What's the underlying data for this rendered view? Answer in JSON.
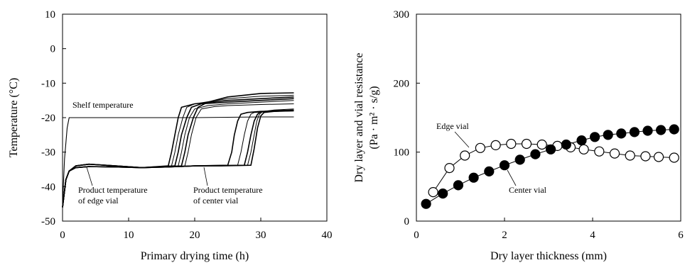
{
  "chart_data": [
    {
      "type": "line",
      "xlabel": "Primary drying time (h)",
      "ylabel": "Temperature (°C)",
      "xlim": [
        0,
        40
      ],
      "ylim": [
        -50,
        10
      ],
      "xticks": [
        0,
        10,
        20,
        30,
        40
      ],
      "yticks": [
        -50,
        -40,
        -30,
        -20,
        -10,
        0,
        10
      ],
      "grid": false,
      "annotations": [
        {
          "text": "Shelf temperature"
        },
        {
          "text": "Product temperature",
          "text2": "of edge vial"
        },
        {
          "text": "Product temperature",
          "text2": "of center vial"
        }
      ],
      "series": [
        {
          "group": "shelf",
          "x": [
            0,
            0.3,
            0.7,
            1,
            2,
            10,
            20,
            30,
            35
          ],
          "y": [
            -45,
            -32,
            -23,
            -20,
            -20,
            -20,
            -20,
            -19.8,
            -19.8
          ]
        },
        {
          "group": "edge",
          "x": [
            0,
            0.5,
            1,
            2,
            4,
            8,
            12,
            16,
            16.5,
            17,
            17.5,
            18,
            20,
            25,
            30,
            35
          ],
          "y": [
            -46,
            -38,
            -35.5,
            -34,
            -33.5,
            -34,
            -34.5,
            -34,
            -30,
            -25,
            -20,
            -17,
            -16,
            -15,
            -14.5,
            -14
          ]
        },
        {
          "group": "edge",
          "x": [
            0,
            0.5,
            1,
            2,
            4,
            8,
            12,
            16.5,
            17,
            17.5,
            18.2,
            18.8,
            20,
            25,
            30,
            35
          ],
          "y": [
            -46,
            -38,
            -35.5,
            -34,
            -33.5,
            -34,
            -34.5,
            -34,
            -30,
            -25,
            -20,
            -17,
            -16,
            -14.5,
            -13.8,
            -13.5
          ]
        },
        {
          "group": "edge",
          "x": [
            0,
            0.5,
            1,
            2,
            4,
            8,
            12,
            17,
            17.5,
            18,
            18.8,
            19.5,
            21,
            25,
            30,
            35
          ],
          "y": [
            -46,
            -38,
            -35.5,
            -34,
            -33.5,
            -34,
            -34.5,
            -34,
            -30,
            -25,
            -20,
            -17,
            -16,
            -15.5,
            -15,
            -14.5
          ]
        },
        {
          "group": "edge",
          "x": [
            0,
            0.5,
            1,
            2,
            4,
            8,
            12,
            17.5,
            18,
            18.5,
            19.2,
            20,
            22,
            25,
            30,
            35
          ],
          "y": [
            -46,
            -38,
            -35.5,
            -34,
            -33.5,
            -34,
            -34.5,
            -34,
            -30,
            -25,
            -20,
            -17.5,
            -16.5,
            -16,
            -15.5,
            -15
          ]
        },
        {
          "group": "edge",
          "x": [
            0,
            0.5,
            1,
            2,
            4,
            8,
            12,
            18,
            18.5,
            19,
            19.8,
            20.5,
            22,
            25,
            30,
            35
          ],
          "y": [
            -46,
            -38,
            -35.5,
            -34,
            -33.5,
            -34,
            -34.5,
            -34,
            -30,
            -25,
            -20,
            -17,
            -15.5,
            -14,
            -13,
            -12.8
          ]
        },
        {
          "group": "edge",
          "x": [
            0,
            0.5,
            1,
            2,
            4,
            8,
            12,
            18.5,
            19,
            19.5,
            20.2,
            21,
            23,
            25,
            30,
            35
          ],
          "y": [
            -46,
            -38,
            -35.5,
            -34,
            -33.5,
            -34,
            -34.5,
            -34,
            -30,
            -25,
            -20,
            -17.5,
            -16.8,
            -16.5,
            -16.2,
            -16
          ]
        },
        {
          "group": "center",
          "x": [
            0,
            0.5,
            1,
            2,
            4,
            8,
            12,
            16,
            20,
            25,
            25.6,
            26,
            26.5,
            27,
            28,
            30,
            35
          ],
          "y": [
            -46,
            -38,
            -35.5,
            -34.5,
            -34.2,
            -34.3,
            -34.5,
            -34.3,
            -34,
            -33.8,
            -30,
            -25,
            -21,
            -19,
            -18.5,
            -18.2,
            -18
          ]
        },
        {
          "group": "center",
          "x": [
            0,
            0.5,
            1,
            2,
            4,
            8,
            12,
            16,
            20,
            26.5,
            27,
            27.5,
            28,
            28.5,
            29,
            31,
            35
          ],
          "y": [
            -46,
            -38,
            -35.5,
            -34.5,
            -34.2,
            -34.3,
            -34.5,
            -34.3,
            -34,
            -33.8,
            -30,
            -25,
            -21,
            -19,
            -18.5,
            -18.3,
            -18
          ]
        },
        {
          "group": "center",
          "x": [
            0,
            0.5,
            1,
            2,
            4,
            8,
            12,
            16,
            20,
            27.5,
            28,
            28.5,
            29,
            29.5,
            30,
            32,
            35
          ],
          "y": [
            -46,
            -38,
            -35.5,
            -34.5,
            -34.2,
            -34.3,
            -34.5,
            -34.3,
            -34,
            -33.8,
            -30,
            -25,
            -21,
            -19,
            -18.3,
            -18,
            -17.8
          ]
        },
        {
          "group": "center",
          "x": [
            0,
            0.5,
            1,
            2,
            4,
            8,
            12,
            16,
            20,
            28,
            28.5,
            29,
            29.4,
            29.8,
            30.3,
            32,
            35
          ],
          "y": [
            -46,
            -38,
            -35.5,
            -34.5,
            -34.2,
            -34.3,
            -34.5,
            -34.3,
            -34,
            -33.8,
            -30,
            -25,
            -21,
            -19,
            -18.2,
            -17.8,
            -17.5
          ]
        },
        {
          "group": "center",
          "x": [
            0,
            0.5,
            1,
            2,
            4,
            8,
            12,
            16,
            20,
            24,
            28.5,
            29,
            29.5,
            30,
            30.5,
            32,
            35
          ],
          "y": [
            -46,
            -38,
            -35.5,
            -34.5,
            -34.2,
            -34.3,
            -34.5,
            -34.3,
            -34,
            -34,
            -33.8,
            -29,
            -23,
            -19.5,
            -18.5,
            -18.2,
            -18
          ]
        }
      ]
    },
    {
      "type": "scatter",
      "xlabel": "Dry layer thickness (mm)",
      "ylabel": "Dry layer and vial resistance",
      "ylabel2": "(Pa · m² · s/g)",
      "xlim": [
        0,
        6
      ],
      "ylim": [
        0,
        300
      ],
      "xticks": [
        0,
        2,
        4,
        6
      ],
      "yticks": [
        0,
        100,
        200,
        300
      ],
      "grid": false,
      "series": [
        {
          "name": "Edge vial",
          "marker": "open-circle",
          "x": [
            0.38,
            0.75,
            1.1,
            1.45,
            1.8,
            2.15,
            2.5,
            2.85,
            3.2,
            3.5,
            3.8,
            4.15,
            4.5,
            4.85,
            5.2,
            5.5,
            5.85
          ],
          "y": [
            42,
            77,
            95,
            106,
            110,
            112,
            112,
            111,
            109,
            107,
            104,
            101,
            98,
            95,
            94,
            93,
            92
          ]
        },
        {
          "name": "Center vial",
          "marker": "filled-circle",
          "x": [
            0.22,
            0.6,
            0.95,
            1.3,
            1.65,
            2.0,
            2.35,
            2.7,
            3.05,
            3.4,
            3.75,
            4.05,
            4.35,
            4.65,
            4.95,
            5.25,
            5.55,
            5.85
          ],
          "y": [
            25,
            40,
            52,
            63,
            72,
            81,
            89,
            97,
            104,
            111,
            117,
            122,
            125,
            127,
            129,
            131,
            132,
            133
          ]
        }
      ]
    }
  ]
}
